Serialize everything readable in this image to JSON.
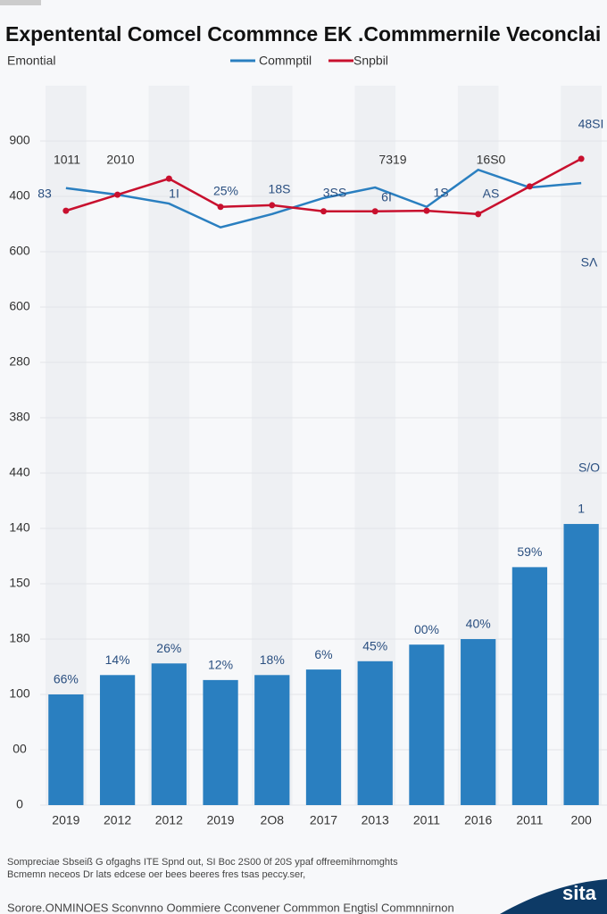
{
  "chart_data": {
    "type": "bar",
    "title": "Expentental Comcel Ccommnce EK .Commmernile Veconclai",
    "subtitle": "Emontial",
    "categories": [
      "2019",
      "2012",
      "2012",
      "2019",
      "2O8",
      "2017",
      "2013",
      "2011",
      "2016",
      "2011",
      "200"
    ],
    "values": [
      2.0,
      2.35,
      2.56,
      2.26,
      2.35,
      2.45,
      2.6,
      2.9,
      3.0,
      4.3,
      5.08
    ],
    "color": "#2a7fc0",
    "bar_texts": [
      "66%",
      "14%",
      "26%",
      "12%",
      "18%",
      "6%",
      "45%",
      "00%",
      "40%",
      "59%",
      "1"
    ],
    "series": [
      {
        "name": "Commptil",
        "color": "#2a7fc0",
        "values": [
          11.15,
          11.03,
          10.87,
          10.44,
          10.68,
          10.97,
          11.16,
          10.81,
          11.48,
          11.16,
          11.24
        ]
      },
      {
        "name": "Snpbil",
        "color": "#c8102e",
        "values": [
          10.74,
          11.03,
          11.32,
          10.81,
          10.84,
          10.73,
          10.73,
          10.74,
          10.68,
          11.18,
          11.68
        ]
      }
    ],
    "annotations": [
      "1011",
      "2010",
      "7319",
      "16S0",
      "48SI",
      "83",
      "1I",
      "25%",
      "18S",
      "3SS",
      "6I",
      "1S",
      "AS",
      "SΛ",
      "S/O"
    ],
    "ylim": [
      0,
      13
    ],
    "yticks": [
      {
        "value": 0,
        "label": "0"
      },
      {
        "value": 1,
        "label": "00"
      },
      {
        "value": 2,
        "label": "100"
      },
      {
        "value": 3,
        "label": "180"
      },
      {
        "value": 4,
        "label": "150"
      },
      {
        "value": 5,
        "label": "140"
      },
      {
        "value": 6,
        "label": "440"
      },
      {
        "value": 7,
        "label": "380"
      },
      {
        "value": 8,
        "label": "280"
      },
      {
        "value": 9,
        "label": "600"
      },
      {
        "value": 10,
        "label": "600"
      },
      {
        "value": 11,
        "label": "400"
      },
      {
        "value": 12,
        "label": "900"
      }
    ],
    "grid": true,
    "notes": [
      "Sompreciae Sbseiß G ofgaghs ITE Spnd out, SI Boc 2S00 0f 20S ypaf offreemihrnomghts",
      "Bcmemn neceos Dr lats edcese oer bees beeres fres tsas peccy.ser,",
      "Sorore.ONMINOES Sconvnno Oommiere Cconvener Commmon Engtisl Commnnirnon"
    ],
    "brand": "sita"
  }
}
